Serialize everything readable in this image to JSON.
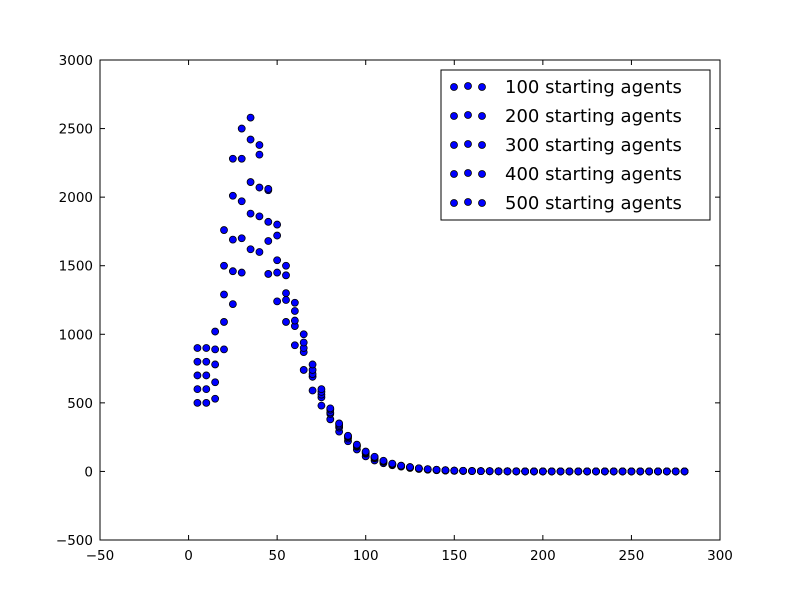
{
  "chart_data": {
    "type": "scatter",
    "title": "",
    "xlabel": "",
    "ylabel": "",
    "xlim": [
      -50,
      300
    ],
    "ylim": [
      -500,
      3000
    ],
    "x_ticks": [
      -50,
      0,
      50,
      100,
      150,
      200,
      250,
      300
    ],
    "y_ticks": [
      -500,
      0,
      500,
      1000,
      1500,
      2000,
      2500,
      3000
    ],
    "grid": false,
    "legend_position": "top-right",
    "marker_color": "#0000ff",
    "marker_edge_color": "#000000",
    "series": [
      {
        "name": "100 starting agents",
        "points": [
          [
            5,
            500
          ],
          [
            10,
            500
          ],
          [
            15,
            530
          ],
          [
            20,
            890
          ],
          [
            25,
            1220
          ],
          [
            30,
            1450
          ],
          [
            35,
            1620
          ],
          [
            40,
            1600
          ],
          [
            45,
            1440
          ],
          [
            50,
            1240
          ],
          [
            55,
            1090
          ],
          [
            60,
            920
          ],
          [
            65,
            740
          ],
          [
            70,
            590
          ],
          [
            75,
            480
          ],
          [
            80,
            380
          ],
          [
            85,
            290
          ],
          [
            90,
            220
          ],
          [
            95,
            160
          ],
          [
            100,
            110
          ],
          [
            105,
            80
          ],
          [
            110,
            60
          ],
          [
            115,
            45
          ],
          [
            120,
            35
          ],
          [
            125,
            25
          ],
          [
            130,
            18
          ],
          [
            135,
            12
          ],
          [
            140,
            9
          ],
          [
            145,
            6
          ],
          [
            150,
            4
          ],
          [
            155,
            3
          ],
          [
            160,
            2
          ],
          [
            165,
            2
          ],
          [
            170,
            1
          ],
          [
            175,
            1
          ],
          [
            180,
            0
          ],
          [
            185,
            0
          ],
          [
            190,
            0
          ],
          [
            195,
            0
          ],
          [
            200,
            0
          ],
          [
            205,
            0
          ],
          [
            210,
            0
          ],
          [
            215,
            0
          ],
          [
            220,
            0
          ],
          [
            225,
            0
          ],
          [
            230,
            0
          ],
          [
            235,
            0
          ],
          [
            240,
            0
          ],
          [
            245,
            0
          ],
          [
            250,
            0
          ],
          [
            255,
            0
          ],
          [
            260,
            0
          ],
          [
            265,
            0
          ],
          [
            270,
            0
          ],
          [
            275,
            0
          ],
          [
            280,
            0
          ]
        ]
      },
      {
        "name": "200 starting agents",
        "points": [
          [
            5,
            600
          ],
          [
            10,
            600
          ],
          [
            15,
            650
          ],
          [
            20,
            1090
          ],
          [
            25,
            1460
          ],
          [
            30,
            1700
          ],
          [
            35,
            1880
          ],
          [
            40,
            1860
          ],
          [
            45,
            1680
          ],
          [
            50,
            1450
          ],
          [
            55,
            1250
          ],
          [
            60,
            1060
          ],
          [
            65,
            870
          ],
          [
            70,
            690
          ],
          [
            75,
            540
          ],
          [
            80,
            420
          ],
          [
            85,
            320
          ],
          [
            90,
            240
          ],
          [
            95,
            180
          ],
          [
            100,
            130
          ],
          [
            105,
            95
          ],
          [
            110,
            70
          ],
          [
            115,
            50
          ],
          [
            120,
            38
          ],
          [
            125,
            28
          ],
          [
            130,
            20
          ],
          [
            135,
            14
          ],
          [
            140,
            10
          ],
          [
            145,
            7
          ],
          [
            150,
            5
          ],
          [
            155,
            4
          ],
          [
            160,
            3
          ],
          [
            165,
            2
          ],
          [
            170,
            1
          ],
          [
            175,
            1
          ],
          [
            180,
            1
          ],
          [
            185,
            0
          ],
          [
            190,
            0
          ],
          [
            195,
            0
          ],
          [
            200,
            0
          ],
          [
            205,
            0
          ],
          [
            210,
            0
          ],
          [
            215,
            0
          ],
          [
            220,
            0
          ],
          [
            225,
            0
          ],
          [
            230,
            0
          ],
          [
            235,
            0
          ],
          [
            240,
            0
          ],
          [
            245,
            0
          ],
          [
            250,
            0
          ],
          [
            255,
            0
          ],
          [
            260,
            0
          ],
          [
            265,
            0
          ],
          [
            270,
            0
          ],
          [
            275,
            0
          ],
          [
            280,
            0
          ]
        ]
      },
      {
        "name": "300 starting agents",
        "points": [
          [
            5,
            700
          ],
          [
            10,
            700
          ],
          [
            15,
            780
          ],
          [
            20,
            1290
          ],
          [
            25,
            1690
          ],
          [
            30,
            1970
          ],
          [
            35,
            2110
          ],
          [
            40,
            2070
          ],
          [
            45,
            1820
          ],
          [
            50,
            1540
          ],
          [
            55,
            1300
          ],
          [
            60,
            1100
          ],
          [
            65,
            900
          ],
          [
            70,
            710
          ],
          [
            75,
            560
          ],
          [
            80,
            430
          ],
          [
            85,
            330
          ],
          [
            90,
            250
          ],
          [
            95,
            185
          ],
          [
            100,
            135
          ],
          [
            105,
            100
          ],
          [
            110,
            72
          ],
          [
            115,
            52
          ],
          [
            120,
            40
          ],
          [
            125,
            30
          ],
          [
            130,
            21
          ],
          [
            135,
            15
          ],
          [
            140,
            11
          ],
          [
            145,
            8
          ],
          [
            150,
            6
          ],
          [
            155,
            4
          ],
          [
            160,
            3
          ],
          [
            165,
            2
          ],
          [
            170,
            2
          ],
          [
            175,
            1
          ],
          [
            180,
            1
          ],
          [
            185,
            0
          ],
          [
            190,
            0
          ],
          [
            195,
            0
          ],
          [
            200,
            0
          ],
          [
            205,
            0
          ],
          [
            210,
            0
          ],
          [
            215,
            0
          ],
          [
            220,
            0
          ],
          [
            225,
            0
          ],
          [
            230,
            0
          ],
          [
            235,
            0
          ],
          [
            240,
            0
          ],
          [
            245,
            0
          ],
          [
            250,
            0
          ],
          [
            255,
            0
          ],
          [
            260,
            0
          ],
          [
            265,
            0
          ],
          [
            270,
            0
          ],
          [
            275,
            0
          ],
          [
            280,
            0
          ]
        ]
      },
      {
        "name": "400 starting agents",
        "points": [
          [
            5,
            800
          ],
          [
            10,
            800
          ],
          [
            15,
            890
          ],
          [
            20,
            1500
          ],
          [
            25,
            2010
          ],
          [
            30,
            2280
          ],
          [
            35,
            2420
          ],
          [
            40,
            2310
          ],
          [
            45,
            2050
          ],
          [
            50,
            1720
          ],
          [
            55,
            1430
          ],
          [
            60,
            1170
          ],
          [
            65,
            940
          ],
          [
            70,
            740
          ],
          [
            75,
            580
          ],
          [
            80,
            450
          ],
          [
            85,
            340
          ],
          [
            90,
            255
          ],
          [
            95,
            190
          ],
          [
            100,
            140
          ],
          [
            105,
            103
          ],
          [
            110,
            75
          ],
          [
            115,
            55
          ],
          [
            120,
            41
          ],
          [
            125,
            31
          ],
          [
            130,
            22
          ],
          [
            135,
            16
          ],
          [
            140,
            12
          ],
          [
            145,
            8
          ],
          [
            150,
            6
          ],
          [
            155,
            4
          ],
          [
            160,
            3
          ],
          [
            165,
            2
          ],
          [
            170,
            2
          ],
          [
            175,
            1
          ],
          [
            180,
            1
          ],
          [
            185,
            1
          ],
          [
            190,
            0
          ],
          [
            195,
            0
          ],
          [
            200,
            0
          ],
          [
            205,
            0
          ],
          [
            210,
            0
          ],
          [
            215,
            0
          ],
          [
            220,
            0
          ],
          [
            225,
            0
          ],
          [
            230,
            0
          ],
          [
            235,
            0
          ],
          [
            240,
            0
          ],
          [
            245,
            0
          ],
          [
            250,
            0
          ],
          [
            255,
            0
          ],
          [
            260,
            0
          ],
          [
            265,
            0
          ],
          [
            270,
            0
          ],
          [
            275,
            0
          ],
          [
            280,
            0
          ]
        ]
      },
      {
        "name": "500 starting agents",
        "points": [
          [
            5,
            900
          ],
          [
            10,
            900
          ],
          [
            15,
            1020
          ],
          [
            20,
            1760
          ],
          [
            25,
            2280
          ],
          [
            30,
            2500
          ],
          [
            35,
            2580
          ],
          [
            40,
            2380
          ],
          [
            45,
            2060
          ],
          [
            50,
            1800
          ],
          [
            55,
            1500
          ],
          [
            60,
            1230
          ],
          [
            65,
            1000
          ],
          [
            70,
            780
          ],
          [
            75,
            600
          ],
          [
            80,
            460
          ],
          [
            85,
            350
          ],
          [
            90,
            260
          ],
          [
            95,
            195
          ],
          [
            100,
            145
          ],
          [
            105,
            107
          ],
          [
            110,
            78
          ],
          [
            115,
            57
          ],
          [
            120,
            42
          ],
          [
            125,
            32
          ],
          [
            130,
            23
          ],
          [
            135,
            17
          ],
          [
            140,
            12
          ],
          [
            145,
            9
          ],
          [
            150,
            6
          ],
          [
            155,
            5
          ],
          [
            160,
            3
          ],
          [
            165,
            2
          ],
          [
            170,
            2
          ],
          [
            175,
            1
          ],
          [
            180,
            1
          ],
          [
            185,
            1
          ],
          [
            190,
            0
          ],
          [
            195,
            0
          ],
          [
            200,
            0
          ],
          [
            205,
            0
          ],
          [
            210,
            0
          ],
          [
            215,
            0
          ],
          [
            220,
            0
          ],
          [
            225,
            0
          ],
          [
            230,
            0
          ],
          [
            235,
            0
          ],
          [
            240,
            0
          ],
          [
            245,
            0
          ],
          [
            250,
            0
          ],
          [
            255,
            0
          ],
          [
            260,
            0
          ],
          [
            265,
            0
          ],
          [
            270,
            0
          ],
          [
            275,
            0
          ],
          [
            280,
            0
          ]
        ]
      }
    ]
  }
}
